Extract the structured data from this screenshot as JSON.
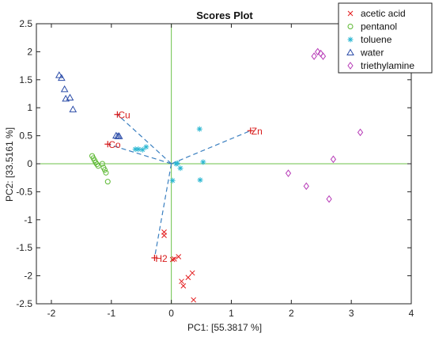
{
  "chart_data": {
    "type": "scatter",
    "title": "Scores Plot",
    "xlabel": "PC1: [55.3817 %]",
    "ylabel": "PC2: [33.5161 %]",
    "xlim": [
      -2.25,
      4
    ],
    "ylim": [
      -2.5,
      2.5
    ],
    "xticks": [
      -2,
      -1,
      0,
      1,
      2,
      3,
      4
    ],
    "yticks": [
      -2.5,
      -2,
      -1.5,
      -1,
      -0.5,
      0,
      0.5,
      1,
      1.5,
      2,
      2.5
    ],
    "xtick_labels": [
      "-2",
      "-1",
      "0",
      "1",
      "2",
      "3",
      "4"
    ],
    "ytick_labels": [
      "-2.5",
      "-2",
      "-1.5",
      "-1",
      "-0.5",
      "0",
      "0.5",
      "1",
      "1.5",
      "2",
      "2.5"
    ],
    "grid": false,
    "zero_lines": true,
    "legend_position": "top-right",
    "series": [
      {
        "name": "acetic acid",
        "marker": "x",
        "color": "#e31a1c",
        "points": [
          [
            -0.12,
            -1.22
          ],
          [
            -0.12,
            -1.28
          ],
          [
            0.02,
            -1.71
          ],
          [
            0.05,
            -1.7
          ],
          [
            0.12,
            -1.66
          ],
          [
            0.17,
            -2.1
          ],
          [
            0.2,
            -2.18
          ],
          [
            0.28,
            -2.03
          ],
          [
            0.35,
            -1.95
          ],
          [
            0.37,
            -2.43
          ]
        ]
      },
      {
        "name": "pentanol",
        "marker": "o",
        "color": "#5cb832",
        "points": [
          [
            -1.32,
            0.14
          ],
          [
            -1.3,
            0.1
          ],
          [
            -1.28,
            0.06
          ],
          [
            -1.26,
            0.02
          ],
          [
            -1.24,
            -0.01
          ],
          [
            -1.22,
            -0.04
          ],
          [
            -1.15,
            0.0
          ],
          [
            -1.13,
            -0.07
          ],
          [
            -1.11,
            -0.11
          ],
          [
            -1.09,
            -0.16
          ],
          [
            -1.06,
            -0.32
          ]
        ]
      },
      {
        "name": "toluene",
        "marker": "*",
        "color": "#2bb7d2",
        "points": [
          [
            -0.6,
            0.26
          ],
          [
            -0.55,
            0.26
          ],
          [
            -0.48,
            0.25
          ],
          [
            -0.42,
            0.3
          ],
          [
            0.02,
            -0.3
          ],
          [
            0.08,
            0.0
          ],
          [
            0.1,
            0.01
          ],
          [
            0.15,
            -0.08
          ],
          [
            0.47,
            0.62
          ],
          [
            0.48,
            -0.29
          ],
          [
            0.53,
            0.03
          ]
        ]
      },
      {
        "name": "water",
        "marker": "triangle",
        "color": "#2b4ca8",
        "points": [
          [
            -1.87,
            1.58
          ],
          [
            -1.83,
            1.53
          ],
          [
            -1.78,
            1.33
          ],
          [
            -1.76,
            1.16
          ],
          [
            -1.69,
            1.18
          ],
          [
            -1.64,
            0.97
          ],
          [
            -0.92,
            0.5
          ],
          [
            -0.89,
            0.49
          ],
          [
            -0.87,
            0.49
          ]
        ]
      },
      {
        "name": "triethylamine",
        "marker": "diamond",
        "color": "#b73cb7",
        "points": [
          [
            1.95,
            -0.17
          ],
          [
            2.25,
            -0.4
          ],
          [
            2.38,
            1.92
          ],
          [
            2.44,
            2.0
          ],
          [
            2.49,
            1.97
          ],
          [
            2.53,
            1.92
          ],
          [
            2.63,
            -0.63
          ],
          [
            2.7,
            0.08
          ],
          [
            3.15,
            0.56
          ]
        ]
      }
    ],
    "loadings": [
      {
        "label": "Cu",
        "x": -0.9,
        "y": 0.88
      },
      {
        "label": "Co",
        "x": -1.06,
        "y": 0.35
      },
      {
        "label": "Zn",
        "x": 1.32,
        "y": 0.59
      },
      {
        "label": "H2",
        "x": -0.28,
        "y": -1.68
      }
    ],
    "loading_color": "#d81b1b",
    "loading_line_color": "#3a7fc0",
    "zero_line_color": "#6cc24a"
  }
}
